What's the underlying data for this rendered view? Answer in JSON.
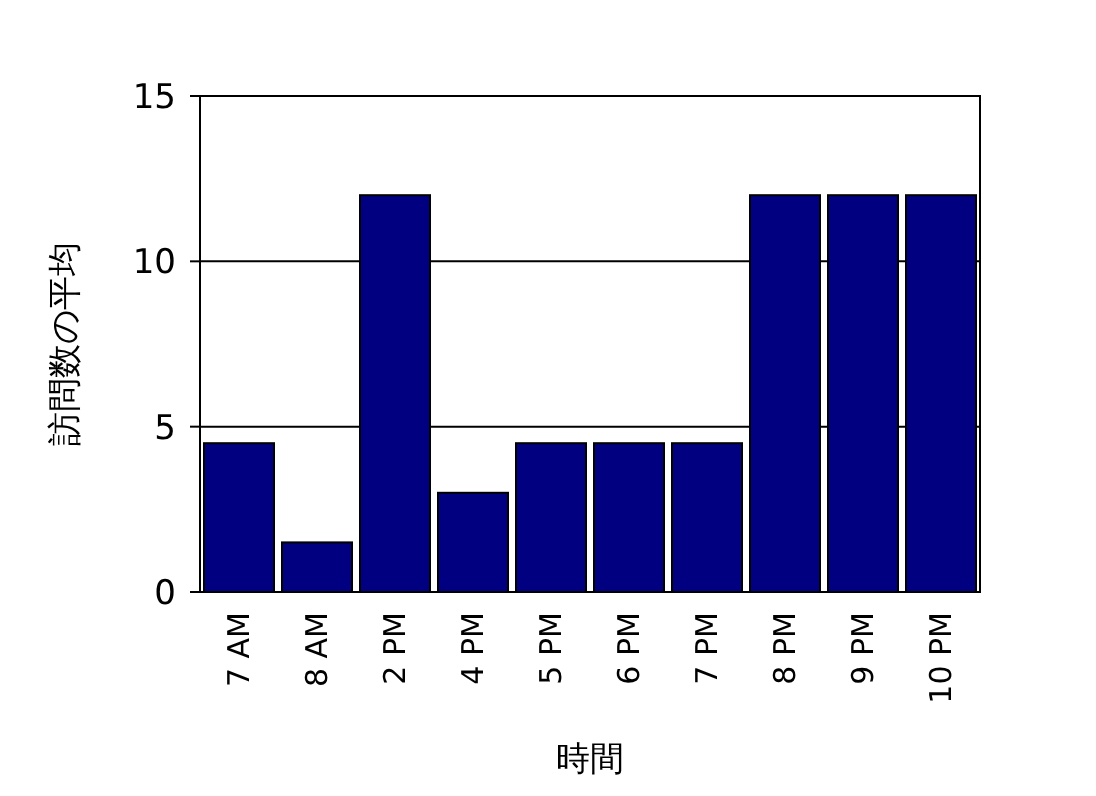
{
  "chart_data": {
    "type": "bar",
    "xlabel": "時間",
    "ylabel": "訪問数の平均",
    "categories": [
      "7 AM",
      "8 AM",
      "2 PM",
      "4 PM",
      "5 PM",
      "6 PM",
      "7 PM",
      "8 PM",
      "9 PM",
      "10 PM"
    ],
    "values": [
      4.5,
      1.5,
      12,
      3,
      4.5,
      4.5,
      4.5,
      12,
      12,
      12
    ],
    "color": "#000080",
    "ylim": [
      0,
      15
    ],
    "yticks": [
      0,
      5,
      10,
      15
    ],
    "grid": "y"
  }
}
